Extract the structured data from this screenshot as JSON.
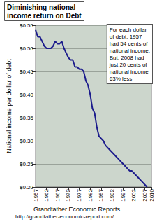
{
  "chart_data": {
    "type": "line",
    "title": "Diminishing national\nincome return on Debt",
    "y_label": "National income per dollar of debt",
    "annotation": [
      "For each dollar",
      "of debt: 1957",
      "had 54 cents of",
      "national income.",
      "But, 2008 had",
      "just 20 cents of",
      "national income",
      "63% less"
    ],
    "footer": [
      "Grandfather Economic Reports",
      "http://grandfather-economic-report.com/"
    ],
    "x": [
      1957,
      1958,
      1959,
      1960,
      1961,
      1962,
      1963,
      1964,
      1965,
      1966,
      1967,
      1968,
      1969,
      1970,
      1971,
      1972,
      1973,
      1974,
      1975,
      1976,
      1977,
      1978,
      1979,
      1980,
      1981,
      1982,
      1983,
      1984,
      1985,
      1986,
      1987,
      1988,
      1989,
      1990,
      1991,
      1992,
      1993,
      1994,
      1995,
      1996,
      1997,
      1998,
      1999,
      2000,
      2001,
      2002,
      2003,
      2004,
      2005,
      2006,
      2007,
      2008
    ],
    "values": [
      0.54,
      0.525,
      0.525,
      0.515,
      0.505,
      0.5,
      0.5,
      0.5,
      0.505,
      0.515,
      0.51,
      0.51,
      0.515,
      0.5,
      0.49,
      0.48,
      0.475,
      0.475,
      0.46,
      0.46,
      0.455,
      0.455,
      0.45,
      0.43,
      0.42,
      0.4,
      0.37,
      0.36,
      0.33,
      0.31,
      0.305,
      0.3,
      0.29,
      0.285,
      0.28,
      0.275,
      0.27,
      0.265,
      0.26,
      0.255,
      0.25,
      0.245,
      0.24,
      0.235,
      0.235,
      0.23,
      0.225,
      0.22,
      0.215,
      0.21,
      0.205,
      0.2
    ],
    "color": "#1c1c8c",
    "line_style": "solid",
    "xlim": [
      1957,
      2010
    ],
    "xticks": [
      1957,
      1962,
      1967,
      1972,
      1977,
      1982,
      1987,
      1992,
      1997,
      2002,
      2007,
      2010
    ],
    "ylim": [
      0.2,
      0.55
    ],
    "yticks": [
      {
        "value": 0.2,
        "label": "$0.20"
      },
      {
        "value": 0.25,
        "label": "$0.25"
      },
      {
        "value": 0.3,
        "label": "$0.30"
      },
      {
        "value": 0.35,
        "label": "$0.35"
      },
      {
        "value": 0.4,
        "label": "$0.40"
      },
      {
        "value": 0.45,
        "label": "$0.45"
      },
      {
        "value": 0.5,
        "label": "$0.50"
      },
      {
        "value": 0.55,
        "label": "$0.55"
      }
    ],
    "grid": true
  }
}
